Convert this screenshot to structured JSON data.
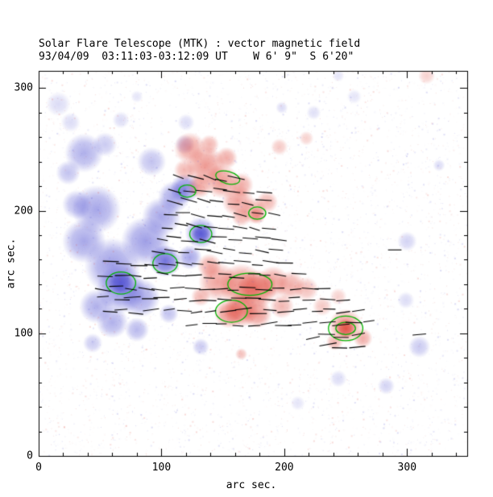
{
  "header": {
    "title": "Solar Flare Telescope (MTK) : vector magnetic field",
    "subtitle": "93/04/09  03:11:03-03:12:09 UT    W 6' 9\"  S 6'20\""
  },
  "chart_data": {
    "type": "heatmap",
    "title": "Solar Flare Telescope (MTK) : vector magnetic field",
    "subtitle": "93/04/09  03:11:03-03:12:09 UT    W 6' 9\"  S 6'20\"",
    "xlabel": "arc sec.",
    "ylabel": "arc sec.",
    "xlim": [
      0,
      349
    ],
    "ylim": [
      0,
      314
    ],
    "xticks": [
      0,
      100,
      200,
      300
    ],
    "yticks": [
      0,
      100,
      200,
      300
    ],
    "minor_tick_step": 20,
    "colors": {
      "negative": "#5050d2",
      "positive": "#e0483c",
      "contour": "#00b400",
      "vector": "#000000",
      "axis": "#000000",
      "background": "#ffffff"
    },
    "negative_regions": [
      [
        37,
        247,
        16,
        0.45
      ],
      [
        24,
        231,
        10,
        0.35
      ],
      [
        54,
        254,
        10,
        0.3
      ],
      [
        67,
        274,
        7,
        0.2
      ],
      [
        80,
        293,
        5,
        0.15
      ],
      [
        47,
        201,
        20,
        0.5
      ],
      [
        37,
        175,
        18,
        0.5
      ],
      [
        60,
        155,
        23,
        0.55
      ],
      [
        67,
        136,
        20,
        0.6
      ],
      [
        67,
        141,
        10,
        0.85
      ],
      [
        87,
        175,
        20,
        0.55
      ],
      [
        100,
        195,
        16,
        0.5
      ],
      [
        110,
        211,
        13,
        0.5
      ],
      [
        119,
        218,
        12,
        0.65
      ],
      [
        132,
        182,
        13,
        0.6
      ],
      [
        132,
        181,
        8,
        0.85
      ],
      [
        103,
        159,
        13,
        0.8
      ],
      [
        83,
        129,
        16,
        0.5
      ],
      [
        60,
        109,
        13,
        0.45
      ],
      [
        47,
        122,
        14,
        0.45
      ],
      [
        80,
        103,
        10,
        0.4
      ],
      [
        106,
        116,
        8,
        0.35
      ],
      [
        123,
        162,
        10,
        0.5
      ],
      [
        31,
        205,
        12,
        0.4
      ],
      [
        132,
        89,
        7,
        0.3
      ],
      [
        300,
        175,
        8,
        0.25
      ],
      [
        310,
        89,
        9,
        0.3
      ],
      [
        283,
        57,
        7,
        0.25
      ],
      [
        326,
        237,
        5,
        0.2
      ],
      [
        198,
        284,
        5,
        0.2
      ],
      [
        244,
        310,
        5,
        0.15
      ],
      [
        119,
        254,
        8,
        0.3
      ],
      [
        92,
        240,
        12,
        0.35
      ],
      [
        44,
        92,
        8,
        0.3
      ],
      [
        16,
        287,
        10,
        0.2
      ],
      [
        26,
        272,
        8,
        0.2
      ],
      [
        120,
        272,
        7,
        0.2
      ],
      [
        224,
        280,
        6,
        0.18
      ],
      [
        257,
        293,
        6,
        0.15
      ],
      [
        244,
        63,
        7,
        0.2
      ],
      [
        211,
        43,
        6,
        0.15
      ],
      [
        299,
        127,
        7,
        0.2
      ]
    ],
    "positive_regions": [
      [
        123,
        251,
        13,
        0.5
      ],
      [
        136,
        237,
        16,
        0.55
      ],
      [
        149,
        224,
        14,
        0.55
      ],
      [
        162,
        208,
        13,
        0.5
      ],
      [
        175,
        200,
        11,
        0.45
      ],
      [
        186,
        207,
        9,
        0.4
      ],
      [
        139,
        254,
        8,
        0.4
      ],
      [
        153,
        243,
        9,
        0.45
      ],
      [
        119,
        233,
        9,
        0.4
      ],
      [
        131,
        220,
        10,
        0.5
      ],
      [
        165,
        195,
        8,
        0.4
      ],
      [
        178,
        196,
        7,
        0.45
      ],
      [
        165,
        221,
        10,
        0.45
      ],
      [
        196,
        252,
        7,
        0.3
      ],
      [
        146,
        142,
        16,
        0.5
      ],
      [
        165,
        139,
        18,
        0.6
      ],
      [
        178,
        136,
        16,
        0.7
      ],
      [
        191,
        142,
        13,
        0.5
      ],
      [
        205,
        139,
        12,
        0.45
      ],
      [
        218,
        136,
        10,
        0.35
      ],
      [
        165,
        119,
        14,
        0.7
      ],
      [
        155,
        116,
        12,
        0.6
      ],
      [
        178,
        116,
        12,
        0.55
      ],
      [
        198,
        122,
        10,
        0.4
      ],
      [
        231,
        122,
        8,
        0.3
      ],
      [
        244,
        130,
        7,
        0.25
      ],
      [
        139,
        155,
        10,
        0.45
      ],
      [
        132,
        130,
        8,
        0.4
      ],
      [
        250,
        106,
        14,
        0.55
      ],
      [
        250,
        104,
        8,
        0.85
      ],
      [
        264,
        96,
        8,
        0.45
      ],
      [
        241,
        93,
        7,
        0.4
      ],
      [
        165,
        83,
        5,
        0.35
      ],
      [
        218,
        259,
        6,
        0.25
      ],
      [
        316,
        310,
        7,
        0.25
      ]
    ],
    "contours": [
      [
        67,
        141,
        12,
        9,
        0
      ],
      [
        103,
        157,
        10,
        8,
        0
      ],
      [
        132,
        181,
        9,
        7,
        0
      ],
      [
        121,
        216,
        7,
        5,
        0
      ],
      [
        154,
        227,
        10,
        5,
        -15
      ],
      [
        178,
        198,
        7,
        5,
        0
      ],
      [
        172,
        140,
        18,
        9,
        0
      ],
      [
        157,
        118,
        13,
        9,
        0
      ],
      [
        250,
        104,
        14,
        10,
        0
      ],
      [
        250,
        104,
        8,
        5,
        0
      ]
    ],
    "vector_rows": [
      {
        "y": 226,
        "x0": 114,
        "n": 5,
        "step": 12,
        "angle": -15
      },
      {
        "y": 216,
        "x0": 111,
        "n": 7,
        "step": 12,
        "angle": -12
      },
      {
        "y": 207,
        "x0": 110,
        "n": 7,
        "step": 12,
        "angle": -10
      },
      {
        "y": 197,
        "x0": 106,
        "n": 8,
        "step": 12,
        "angle": -8
      },
      {
        "y": 187,
        "x0": 103,
        "n": 8,
        "step": 12,
        "angle": -10
      },
      {
        "y": 177,
        "x0": 100,
        "n": 9,
        "step": 12,
        "angle": -8
      },
      {
        "y": 167,
        "x0": 96,
        "n": 9,
        "step": 12,
        "angle": -6
      },
      {
        "y": 157,
        "x0": 57,
        "n": 13,
        "step": 12,
        "angle": -4
      },
      {
        "y": 147,
        "x0": 54,
        "n": 14,
        "step": 12,
        "angle": -3
      },
      {
        "y": 137,
        "x0": 52,
        "n": 16,
        "step": 12,
        "angle": -2
      },
      {
        "y": 128,
        "x0": 54,
        "n": 17,
        "step": 12,
        "angle": 0
      },
      {
        "y": 118,
        "x0": 57,
        "n": 18,
        "step": 12,
        "angle": 2
      },
      {
        "y": 108,
        "x0": 126,
        "n": 13,
        "step": 12,
        "angle": 3
      },
      {
        "y": 98,
        "x0": 224,
        "n": 4,
        "step": 12,
        "angle": 5
      },
      {
        "y": 89,
        "x0": 234,
        "n": 3,
        "step": 12,
        "angle": 5
      }
    ],
    "vector_extras": [
      [
        290,
        168,
        0
      ],
      [
        310,
        99,
        5
      ]
    ],
    "vector_length": 11,
    "noise": {
      "count": 5200,
      "alpha": 0.2,
      "seed": 7
    }
  }
}
